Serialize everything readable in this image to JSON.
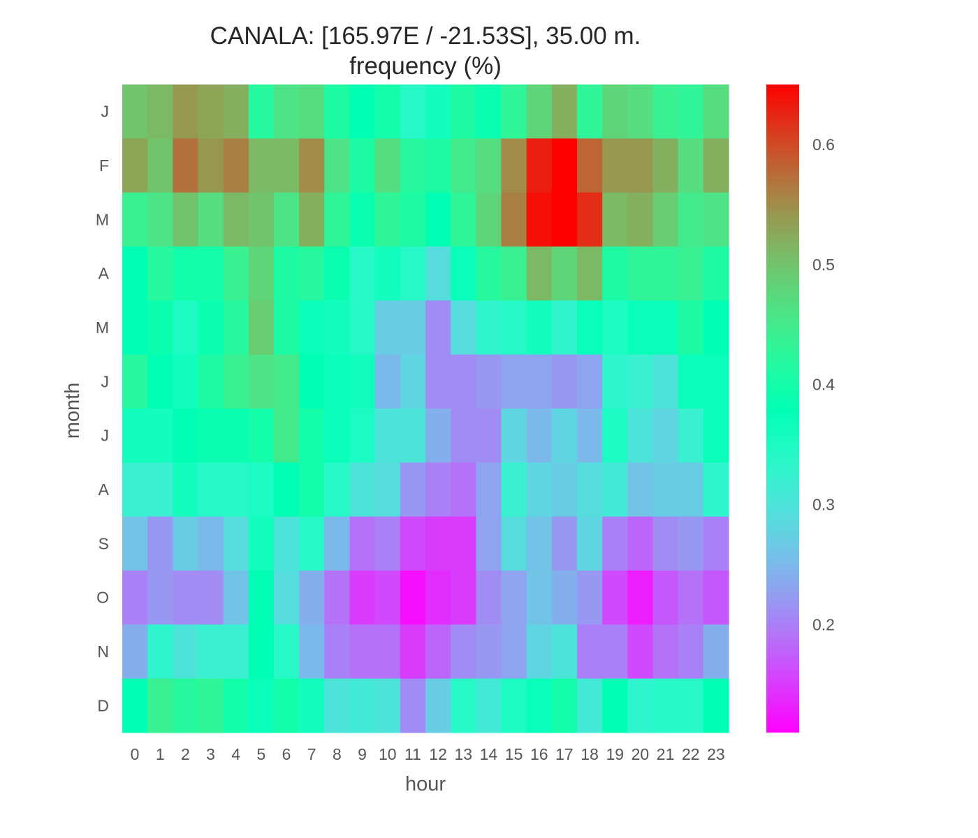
{
  "chart_data": {
    "type": "heatmap",
    "title": "CANALA: [165.97E / -21.53S], 35.00 m.",
    "subtitle": "frequency (%)",
    "xlabel": "hour",
    "ylabel": "month",
    "x": [
      "0",
      "1",
      "2",
      "3",
      "4",
      "5",
      "6",
      "7",
      "8",
      "9",
      "10",
      "11",
      "12",
      "13",
      "14",
      "15",
      "16",
      "17",
      "18",
      "19",
      "20",
      "21",
      "22",
      "23"
    ],
    "y": [
      "J",
      "F",
      "M",
      "A",
      "M",
      "J",
      "J",
      "A",
      "S",
      "O",
      "N",
      "D"
    ],
    "values": [
      [
        0.5,
        0.51,
        0.54,
        0.53,
        0.52,
        0.42,
        0.46,
        0.47,
        0.41,
        0.38,
        0.4,
        0.34,
        0.36,
        0.41,
        0.39,
        0.43,
        0.48,
        0.52,
        0.43,
        0.48,
        0.47,
        0.44,
        0.43,
        0.47
      ],
      [
        0.53,
        0.5,
        0.57,
        0.54,
        0.56,
        0.51,
        0.51,
        0.55,
        0.46,
        0.41,
        0.47,
        0.42,
        0.41,
        0.45,
        0.47,
        0.55,
        0.63,
        0.65,
        0.58,
        0.54,
        0.54,
        0.52,
        0.47,
        0.52
      ],
      [
        0.44,
        0.46,
        0.5,
        0.47,
        0.51,
        0.5,
        0.46,
        0.52,
        0.43,
        0.39,
        0.43,
        0.41,
        0.38,
        0.43,
        0.48,
        0.56,
        0.64,
        0.65,
        0.62,
        0.51,
        0.52,
        0.49,
        0.45,
        0.46
      ],
      [
        0.38,
        0.42,
        0.4,
        0.4,
        0.44,
        0.48,
        0.41,
        0.42,
        0.39,
        0.34,
        0.36,
        0.34,
        0.29,
        0.37,
        0.42,
        0.44,
        0.51,
        0.48,
        0.51,
        0.41,
        0.43,
        0.43,
        0.44,
        0.41
      ],
      [
        0.38,
        0.39,
        0.35,
        0.39,
        0.42,
        0.49,
        0.41,
        0.37,
        0.36,
        0.34,
        0.27,
        0.27,
        0.21,
        0.29,
        0.33,
        0.34,
        0.36,
        0.33,
        0.37,
        0.35,
        0.37,
        0.37,
        0.41,
        0.38
      ],
      [
        0.42,
        0.38,
        0.36,
        0.41,
        0.44,
        0.46,
        0.45,
        0.38,
        0.37,
        0.36,
        0.25,
        0.28,
        0.21,
        0.21,
        0.22,
        0.23,
        0.23,
        0.22,
        0.23,
        0.33,
        0.32,
        0.3,
        0.37,
        0.37
      ],
      [
        0.36,
        0.36,
        0.38,
        0.39,
        0.39,
        0.4,
        0.45,
        0.4,
        0.37,
        0.35,
        0.3,
        0.3,
        0.24,
        0.21,
        0.21,
        0.28,
        0.25,
        0.28,
        0.25,
        0.35,
        0.3,
        0.28,
        0.32,
        0.37
      ],
      [
        0.32,
        0.32,
        0.36,
        0.34,
        0.34,
        0.35,
        0.38,
        0.4,
        0.34,
        0.3,
        0.29,
        0.22,
        0.2,
        0.19,
        0.23,
        0.32,
        0.28,
        0.27,
        0.29,
        0.31,
        0.26,
        0.27,
        0.27,
        0.33
      ],
      [
        0.26,
        0.22,
        0.27,
        0.25,
        0.29,
        0.36,
        0.3,
        0.34,
        0.25,
        0.19,
        0.2,
        0.16,
        0.15,
        0.15,
        0.23,
        0.29,
        0.26,
        0.22,
        0.28,
        0.2,
        0.18,
        0.21,
        0.22,
        0.2
      ],
      [
        0.2,
        0.22,
        0.21,
        0.21,
        0.26,
        0.38,
        0.29,
        0.24,
        0.19,
        0.15,
        0.16,
        0.12,
        0.14,
        0.15,
        0.21,
        0.23,
        0.26,
        0.24,
        0.22,
        0.16,
        0.13,
        0.17,
        0.19,
        0.17
      ],
      [
        0.24,
        0.33,
        0.3,
        0.32,
        0.32,
        0.38,
        0.34,
        0.25,
        0.2,
        0.19,
        0.19,
        0.15,
        0.18,
        0.21,
        0.22,
        0.23,
        0.28,
        0.3,
        0.2,
        0.2,
        0.16,
        0.19,
        0.2,
        0.24
      ],
      [
        0.38,
        0.44,
        0.42,
        0.43,
        0.4,
        0.37,
        0.4,
        0.36,
        0.3,
        0.31,
        0.3,
        0.21,
        0.27,
        0.34,
        0.31,
        0.35,
        0.37,
        0.4,
        0.31,
        0.38,
        0.33,
        0.34,
        0.34,
        0.38
      ]
    ],
    "vmin": 0.11,
    "vmax": 0.65,
    "colormap": "rainbow",
    "colorbar_ticks": [
      0.2,
      0.3,
      0.4,
      0.5,
      0.6
    ],
    "colorbar_tick_labels": [
      "0.2",
      "0.3",
      "0.4",
      "0.5",
      "0.6"
    ],
    "grid": false
  }
}
